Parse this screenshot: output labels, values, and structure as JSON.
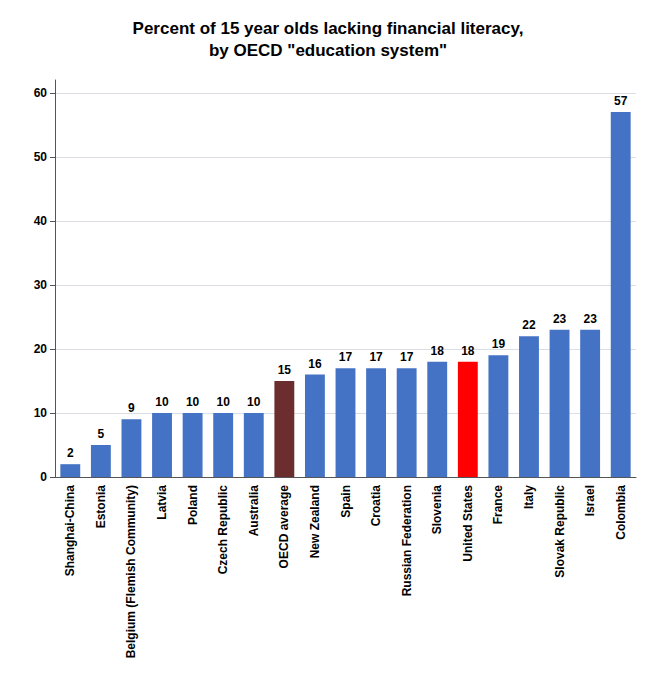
{
  "chart_data": {
    "type": "bar",
    "title": "Percent of 15 year olds lacking financial literacy,\nby OECD \"education system\"",
    "categories": [
      "Shanghai-China",
      "Estonia",
      "Belgium (Flemish Community)",
      "Latvia",
      "Poland",
      "Czech Republic",
      "Australia",
      "OECD average",
      "New Zealand",
      "Spain",
      "Croatia",
      "Russian Federation",
      "Slovenia",
      "United States",
      "France",
      "Italy",
      "Slovak Republic",
      "Israel",
      "Colombia"
    ],
    "values": [
      2,
      5,
      9,
      10,
      10,
      10,
      10,
      15,
      16,
      17,
      17,
      17,
      18,
      18,
      19,
      22,
      23,
      23,
      57
    ],
    "colors": [
      "#4472C4",
      "#4472C4",
      "#4472C4",
      "#4472C4",
      "#4472C4",
      "#4472C4",
      "#4472C4",
      "#6B2D2D",
      "#4472C4",
      "#4472C4",
      "#4472C4",
      "#4472C4",
      "#4472C4",
      "#FF0000",
      "#4472C4",
      "#4472C4",
      "#4472C4",
      "#4472C4",
      "#4472C4"
    ],
    "ylim": [
      0,
      62
    ],
    "yticks": [
      0,
      10,
      20,
      30,
      40,
      50,
      60
    ],
    "grid": true,
    "data_labels": true
  }
}
